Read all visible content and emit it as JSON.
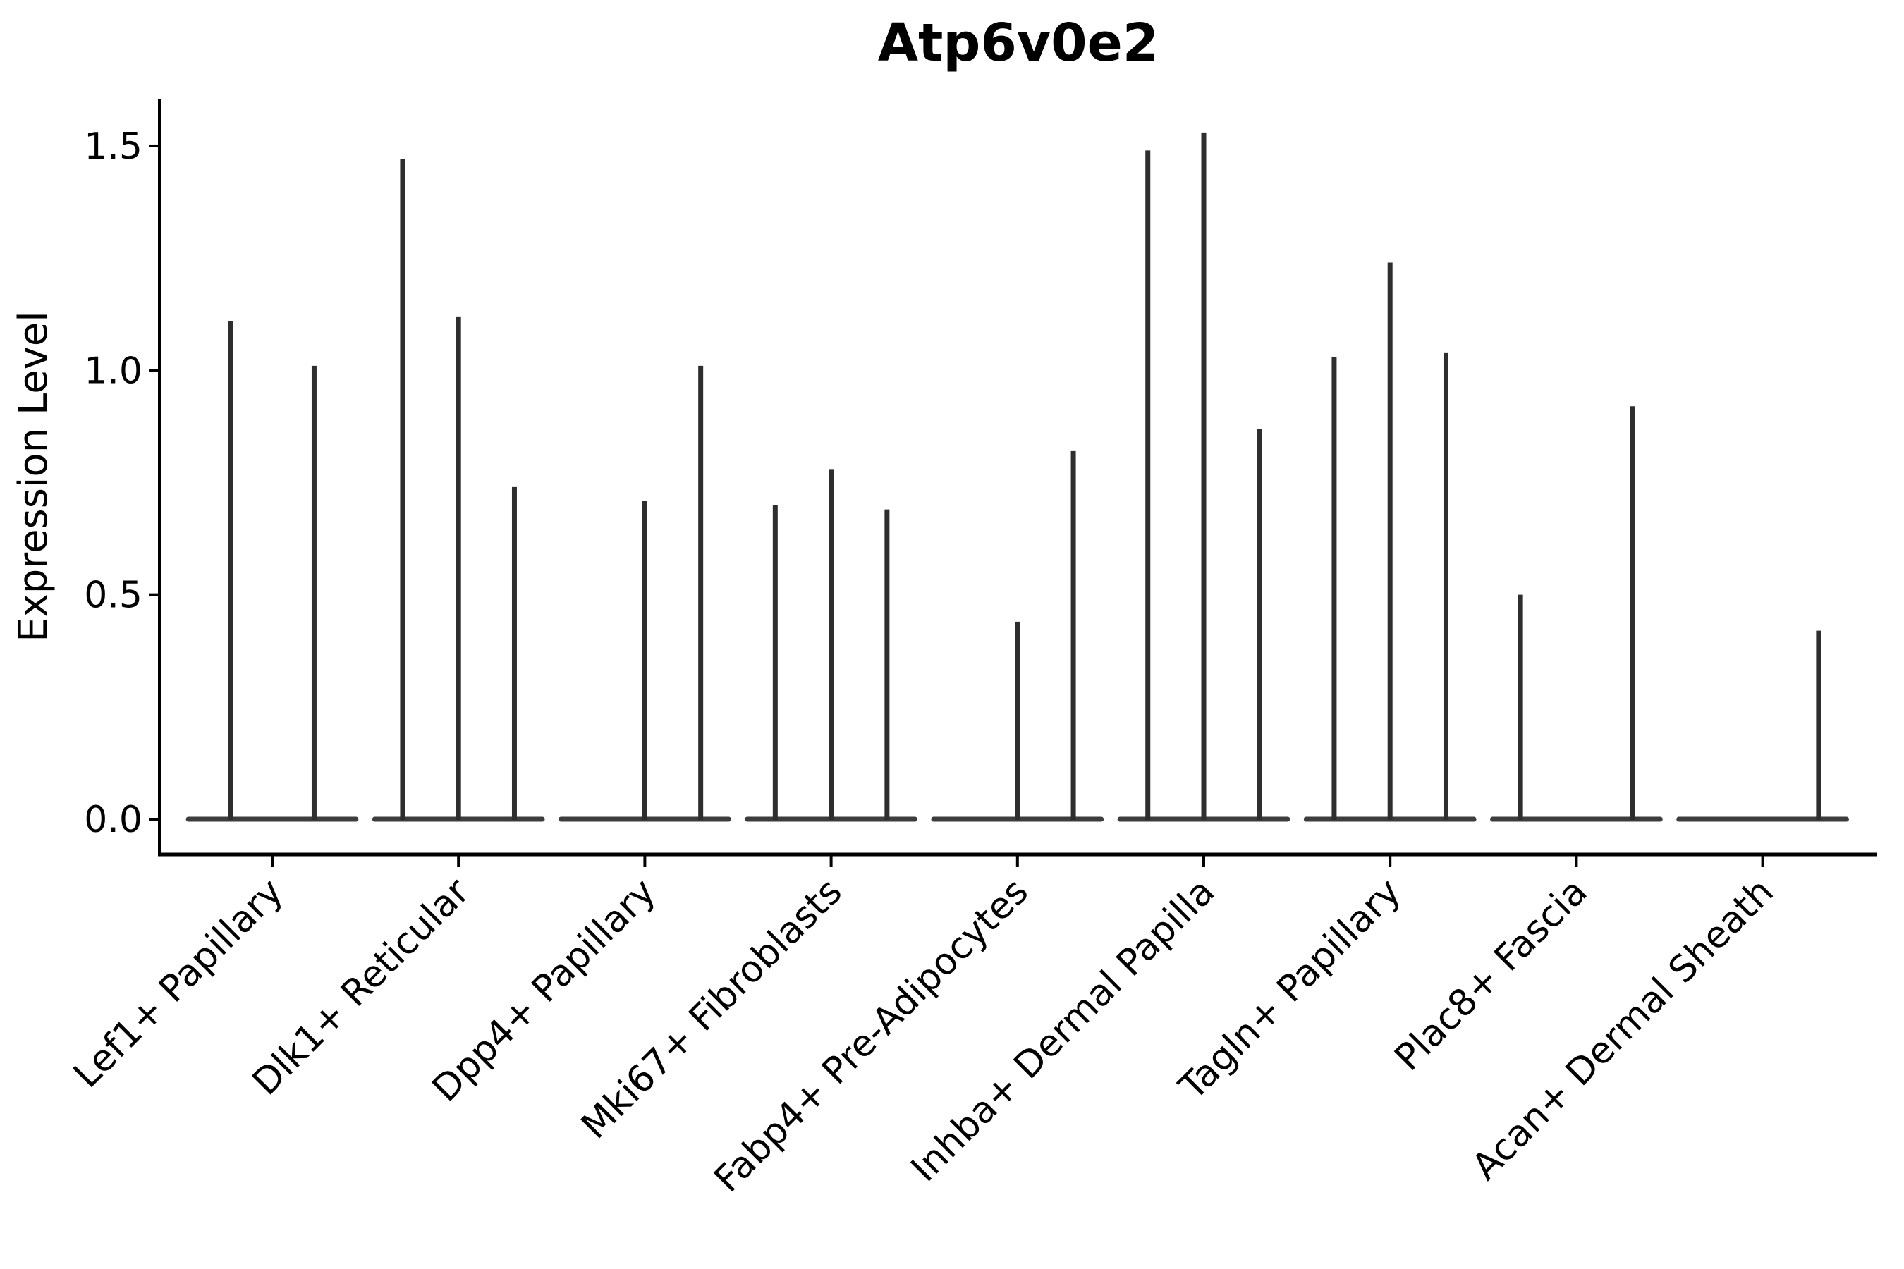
{
  "chart_data": {
    "type": "violin",
    "title": "Atp6v0e2",
    "ylabel": "Expression Level",
    "xlabel": "",
    "yticks": [
      0.0,
      0.5,
      1.0,
      1.5
    ],
    "ytick_labels": [
      "0.0",
      "0.5",
      "1.0",
      "1.5"
    ],
    "ylim": [
      -0.08,
      1.67
    ],
    "grid": false,
    "legend": "none",
    "categories": [
      "Lef1+ Papillary",
      "Dlk1+ Reticular",
      "Dpp4+ Papillary",
      "Mki67+ Fibroblasts",
      "Fabp4+ Pre-Adipocytes",
      "Inhba+ Dermal Papilla",
      "Tagln+ Papillary",
      "Plac8+ Fascia",
      "Acan+ Dermal Sheath"
    ],
    "groups": [
      {
        "category": "Lef1+ Papillary",
        "violin_maxima": [
          1.11,
          1.01
        ]
      },
      {
        "category": "Dlk1+ Reticular",
        "violin_maxima": [
          1.47,
          1.12,
          0.74
        ]
      },
      {
        "category": "Dpp4+ Papillary",
        "violin_maxima": [
          0.0,
          0.71,
          1.01
        ]
      },
      {
        "category": "Mki67+ Fibroblasts",
        "violin_maxima": [
          0.7,
          0.78,
          0.69
        ]
      },
      {
        "category": "Fabp4+ Pre-Adipocytes",
        "violin_maxima": [
          0.0,
          0.44,
          0.82
        ]
      },
      {
        "category": "Inhba+ Dermal Papilla",
        "violin_maxima": [
          1.49,
          1.53,
          0.87
        ]
      },
      {
        "category": "Tagln+ Papillary",
        "violin_maxima": [
          1.03,
          1.24,
          1.04
        ]
      },
      {
        "category": "Plac8+ Fascia",
        "violin_maxima": [
          0.5,
          0.0,
          0.92
        ]
      },
      {
        "category": "Acan+ Dermal Sheath",
        "violin_maxima": [
          0.0,
          0.0,
          0.42
        ]
      }
    ],
    "colors": {
      "violin_line": "#2e2e2e",
      "baseline": "#3d3d3d",
      "axis": "#000000",
      "text": "#000000",
      "background": "#ffffff"
    }
  }
}
